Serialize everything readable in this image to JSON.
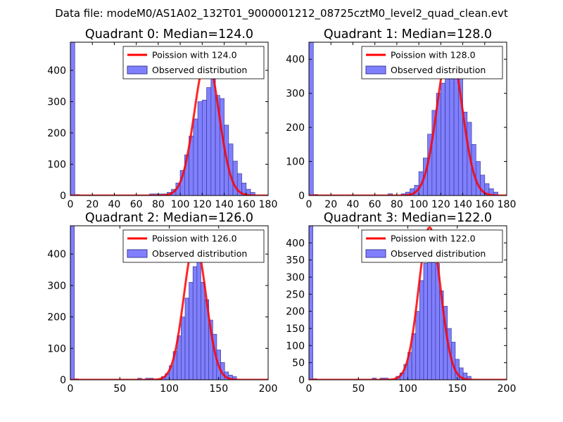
{
  "figure_title": "Data file: modeM0/AS1A02_132T01_9000001212_08725cztM0_level2_quad_clean.evt",
  "colors": {
    "bar_fill": "#8080ff",
    "bar_edge": "#3a3a99",
    "fit_line": "#ff0000",
    "axis": "#000000"
  },
  "chart_data": [
    {
      "type": "bar",
      "title": "Quadrant 0: Median=124.0",
      "median": 124.0,
      "xlim": [
        0,
        180
      ],
      "ylim": [
        0,
        490
      ],
      "xticks": [
        0,
        20,
        40,
        60,
        80,
        100,
        120,
        140,
        160,
        180
      ],
      "yticks": [
        0,
        100,
        200,
        300,
        400
      ],
      "bin_width": 4,
      "series": [
        {
          "name": "Observed distribution",
          "bins": [
            [
              0,
              490
            ],
            [
              4,
              3
            ],
            [
              72,
              5
            ],
            [
              76,
              5
            ],
            [
              80,
              5
            ],
            [
              84,
              5
            ],
            [
              88,
              10
            ],
            [
              92,
              20
            ],
            [
              96,
              40
            ],
            [
              100,
              80
            ],
            [
              104,
              130
            ],
            [
              108,
              190
            ],
            [
              112,
              245
            ],
            [
              116,
              300
            ],
            [
              120,
              305
            ],
            [
              124,
              345
            ],
            [
              128,
              415
            ],
            [
              132,
              320
            ],
            [
              136,
              310
            ],
            [
              140,
              225
            ],
            [
              144,
              165
            ],
            [
              148,
              110
            ],
            [
              152,
              70
            ],
            [
              156,
              40
            ],
            [
              160,
              20
            ],
            [
              164,
              10
            ]
          ]
        },
        {
          "name": "Poission with 124.0",
          "mean": 124.0,
          "scale": 440
        }
      ],
      "legend": [
        "Poission with 124.0",
        "Observed distribution"
      ]
    },
    {
      "type": "bar",
      "title": "Quadrant 1: Median=128.0",
      "median": 128.0,
      "xlim": [
        0,
        180
      ],
      "ylim": [
        0,
        450
      ],
      "xticks": [
        0,
        20,
        40,
        60,
        80,
        100,
        120,
        140,
        160,
        180
      ],
      "yticks": [
        0,
        100,
        200,
        300,
        400
      ],
      "bin_width": 4,
      "series": [
        {
          "name": "Observed distribution",
          "bins": [
            [
              0,
              450
            ],
            [
              4,
              3
            ],
            [
              72,
              5
            ],
            [
              84,
              5
            ],
            [
              88,
              10
            ],
            [
              92,
              20
            ],
            [
              96,
              30
            ],
            [
              100,
              70
            ],
            [
              104,
              110
            ],
            [
              108,
              180
            ],
            [
              112,
              250
            ],
            [
              116,
              300
            ],
            [
              120,
              330
            ],
            [
              124,
              390
            ],
            [
              128,
              380
            ],
            [
              132,
              370
            ],
            [
              136,
              350
            ],
            [
              140,
              245
            ],
            [
              144,
              215
            ],
            [
              148,
              150
            ],
            [
              152,
              100
            ],
            [
              156,
              60
            ],
            [
              160,
              35
            ],
            [
              164,
              20
            ],
            [
              168,
              10
            ]
          ]
        },
        {
          "name": "Poission with 128.0",
          "mean": 128.0,
          "scale": 435
        }
      ],
      "legend": [
        "Poission with 128.0",
        "Observed distribution"
      ]
    },
    {
      "type": "bar",
      "title": "Quadrant 2: Median=126.0",
      "median": 126.0,
      "xlim": [
        0,
        200
      ],
      "ylim": [
        0,
        490
      ],
      "xticks": [
        0,
        50,
        100,
        150,
        200
      ],
      "yticks": [
        0,
        100,
        200,
        300,
        400
      ],
      "bin_width": 4,
      "series": [
        {
          "name": "Observed distribution",
          "bins": [
            [
              0,
              490
            ],
            [
              4,
              3
            ],
            [
              68,
              5
            ],
            [
              76,
              5
            ],
            [
              80,
              5
            ],
            [
              92,
              10
            ],
            [
              96,
              20
            ],
            [
              100,
              45
            ],
            [
              104,
              90
            ],
            [
              108,
              140
            ],
            [
              112,
              200
            ],
            [
              116,
              260
            ],
            [
              120,
              310
            ],
            [
              124,
              360
            ],
            [
              128,
              430
            ],
            [
              132,
              310
            ],
            [
              136,
              255
            ],
            [
              140,
              190
            ],
            [
              144,
              145
            ],
            [
              148,
              95
            ],
            [
              152,
              55
            ],
            [
              156,
              25
            ],
            [
              160,
              15
            ],
            [
              164,
              10
            ]
          ]
        },
        {
          "name": "Poission with 126.0",
          "mean": 126.0,
          "scale": 440
        }
      ],
      "legend": [
        "Poission with 126.0",
        "Observed distribution"
      ]
    },
    {
      "type": "bar",
      "title": "Quadrant 3: Median=122.0",
      "median": 122.0,
      "xlim": [
        0,
        200
      ],
      "ylim": [
        0,
        450
      ],
      "xticks": [
        0,
        50,
        100,
        150,
        200
      ],
      "yticks": [
        0,
        50,
        100,
        150,
        200,
        250,
        300,
        350,
        400
      ],
      "bin_width": 4,
      "series": [
        {
          "name": "Observed distribution",
          "bins": [
            [
              0,
              450
            ],
            [
              4,
              3
            ],
            [
              64,
              5
            ],
            [
              72,
              5
            ],
            [
              76,
              5
            ],
            [
              88,
              10
            ],
            [
              92,
              20
            ],
            [
              96,
              45
            ],
            [
              100,
              80
            ],
            [
              104,
              135
            ],
            [
              108,
              200
            ],
            [
              112,
              290
            ],
            [
              116,
              340
            ],
            [
              120,
              410
            ],
            [
              124,
              380
            ],
            [
              128,
              340
            ],
            [
              132,
              260
            ],
            [
              136,
              215
            ],
            [
              140,
              150
            ],
            [
              144,
              110
            ],
            [
              148,
              60
            ],
            [
              152,
              35
            ],
            [
              156,
              20
            ],
            [
              160,
              10
            ]
          ]
        },
        {
          "name": "Poission with 122.0",
          "mean": 122.0,
          "scale": 445
        }
      ],
      "legend": [
        "Poission with 122.0",
        "Observed distribution"
      ]
    }
  ]
}
